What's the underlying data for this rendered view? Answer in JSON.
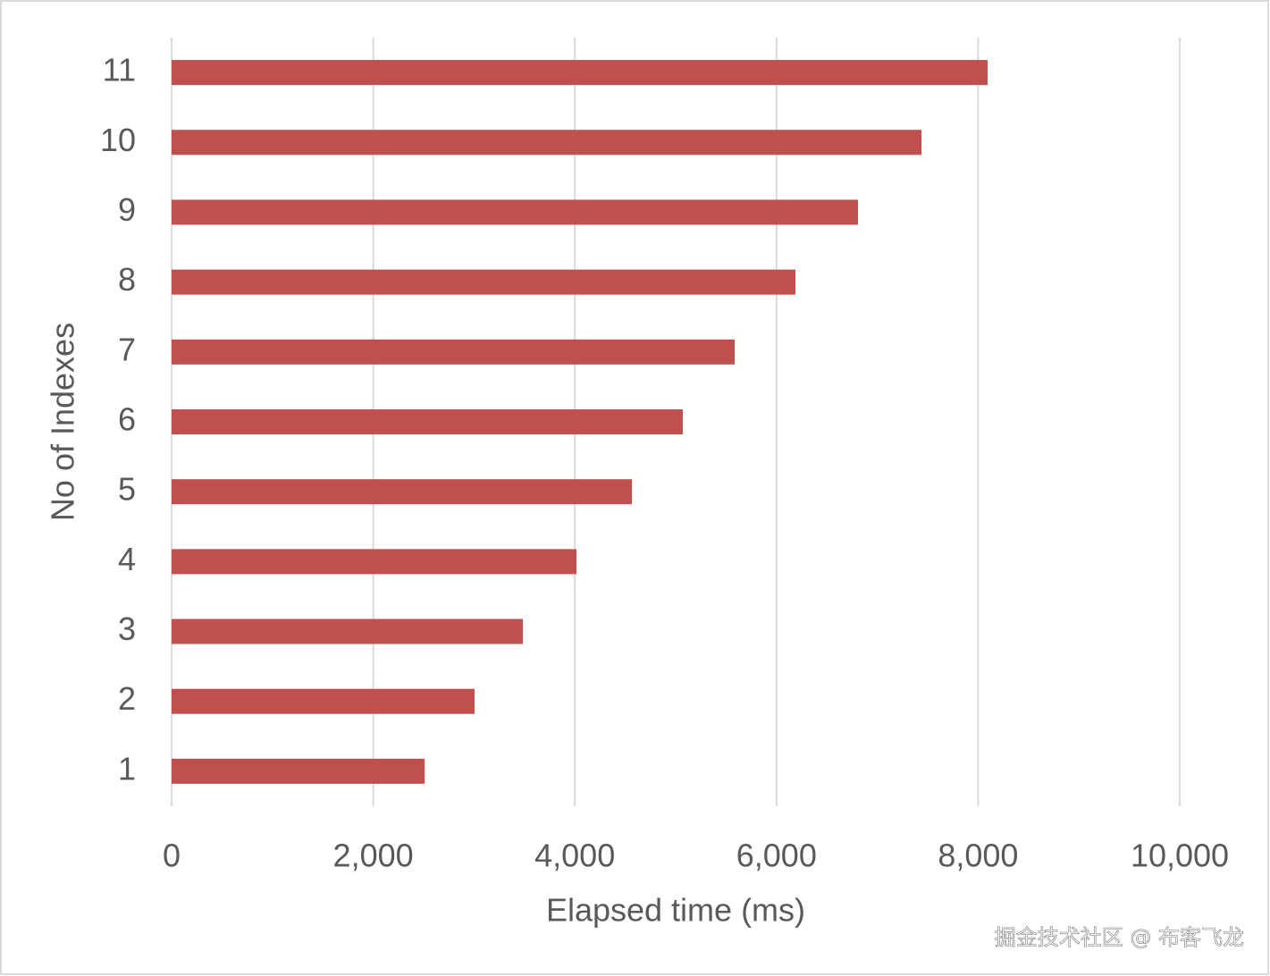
{
  "chart_data": {
    "type": "bar",
    "orientation": "horizontal",
    "x_label": "Elapsed time (ms)",
    "y_label": "No of Indexes",
    "categories": [
      "1",
      "2",
      "3",
      "4",
      "5",
      "6",
      "7",
      "8",
      "9",
      "10",
      "11"
    ],
    "values": [
      2510,
      3005,
      3484,
      4016,
      4566,
      5071,
      5585,
      6188,
      6809,
      7438,
      8094
    ],
    "color": "#c0504d",
    "xlim": [
      0,
      10000
    ],
    "xticks": [
      0,
      {
        "value": 2000,
        "label": "2,000"
      },
      {
        "value": 4000,
        "label": "4,000"
      },
      {
        "value": 6000,
        "label": "6,000"
      },
      {
        "value": 8000,
        "label": "8,000"
      },
      {
        "value": 10000,
        "label": "10,000"
      }
    ],
    "grid": true,
    "watermark": "掘金技术社区 @ 布客飞龙"
  }
}
